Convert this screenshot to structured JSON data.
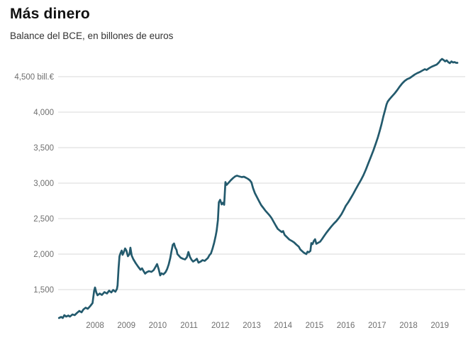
{
  "header": {
    "title": "Más dinero",
    "subtitle": "Balance del BCE, en billones de euros"
  },
  "colors": {
    "line": "#235a6d",
    "grid": "#d8d8d8",
    "tick_text": "#6f6f6f",
    "title": "#111111",
    "subtitle": "#333333",
    "background": "#ffffff"
  },
  "chart_data": {
    "type": "line",
    "title": "Más dinero",
    "subtitle": "Balance del BCE, en billones de euros",
    "ylabel": "",
    "xlabel": "",
    "unit": "bill.€",
    "legend": "none",
    "grid": "horizontal-only",
    "x_domain": [
      2006.85,
      2019.56
    ],
    "ylim": [
      1050,
      4800
    ],
    "y_ticks": [
      {
        "value": 4500,
        "label": "4,500 bill.€"
      },
      {
        "value": 4000,
        "label": "4,000"
      },
      {
        "value": 3500,
        "label": "3,500"
      },
      {
        "value": 3000,
        "label": "3,000"
      },
      {
        "value": 2500,
        "label": "2,500"
      },
      {
        "value": 2000,
        "label": "2,000"
      },
      {
        "value": 1500,
        "label": "1,500"
      }
    ],
    "x_ticks": [
      "2008",
      "2009",
      "2010",
      "2011",
      "2012",
      "2013",
      "2014",
      "2015",
      "2016",
      "2017",
      "2018",
      "2019"
    ],
    "series": [
      {
        "name": "Balance del BCE (billones de euros)",
        "color": "#235a6d",
        "points": [
          [
            2006.85,
            1100
          ],
          [
            2006.92,
            1115
          ],
          [
            2006.97,
            1100
          ],
          [
            2007.02,
            1140
          ],
          [
            2007.08,
            1120
          ],
          [
            2007.15,
            1135
          ],
          [
            2007.2,
            1120
          ],
          [
            2007.28,
            1150
          ],
          [
            2007.35,
            1140
          ],
          [
            2007.42,
            1170
          ],
          [
            2007.5,
            1200
          ],
          [
            2007.57,
            1180
          ],
          [
            2007.63,
            1220
          ],
          [
            2007.7,
            1245
          ],
          [
            2007.77,
            1230
          ],
          [
            2007.85,
            1270
          ],
          [
            2007.92,
            1310
          ],
          [
            2007.97,
            1480
          ],
          [
            2008.0,
            1530
          ],
          [
            2008.04,
            1460
          ],
          [
            2008.08,
            1420
          ],
          [
            2008.15,
            1445
          ],
          [
            2008.22,
            1425
          ],
          [
            2008.3,
            1465
          ],
          [
            2008.38,
            1445
          ],
          [
            2008.45,
            1485
          ],
          [
            2008.52,
            1460
          ],
          [
            2008.58,
            1495
          ],
          [
            2008.65,
            1470
          ],
          [
            2008.7,
            1510
          ],
          [
            2008.72,
            1560
          ],
          [
            2008.75,
            1800
          ],
          [
            2008.78,
            1970
          ],
          [
            2008.81,
            2010
          ],
          [
            2008.85,
            2050
          ],
          [
            2008.88,
            1990
          ],
          [
            2008.92,
            2030
          ],
          [
            2008.96,
            2080
          ],
          [
            2009.0,
            2050
          ],
          [
            2009.05,
            1970
          ],
          [
            2009.1,
            2000
          ],
          [
            2009.13,
            2090
          ],
          [
            2009.17,
            1980
          ],
          [
            2009.22,
            1930
          ],
          [
            2009.3,
            1870
          ],
          [
            2009.38,
            1820
          ],
          [
            2009.45,
            1780
          ],
          [
            2009.5,
            1800
          ],
          [
            2009.55,
            1760
          ],
          [
            2009.6,
            1725
          ],
          [
            2009.65,
            1745
          ],
          [
            2009.72,
            1760
          ],
          [
            2009.8,
            1750
          ],
          [
            2009.87,
            1775
          ],
          [
            2009.93,
            1820
          ],
          [
            2009.98,
            1860
          ],
          [
            2010.03,
            1790
          ],
          [
            2010.08,
            1700
          ],
          [
            2010.12,
            1730
          ],
          [
            2010.18,
            1715
          ],
          [
            2010.25,
            1745
          ],
          [
            2010.3,
            1790
          ],
          [
            2010.35,
            1855
          ],
          [
            2010.4,
            1945
          ],
          [
            2010.44,
            2040
          ],
          [
            2010.48,
            2130
          ],
          [
            2010.52,
            2150
          ],
          [
            2010.56,
            2090
          ],
          [
            2010.6,
            2060
          ],
          [
            2010.63,
            2000
          ],
          [
            2010.68,
            1975
          ],
          [
            2010.73,
            1950
          ],
          [
            2010.8,
            1935
          ],
          [
            2010.87,
            1925
          ],
          [
            2010.93,
            1955
          ],
          [
            2010.98,
            2030
          ],
          [
            2011.03,
            1960
          ],
          [
            2011.08,
            1920
          ],
          [
            2011.13,
            1895
          ],
          [
            2011.2,
            1915
          ],
          [
            2011.25,
            1935
          ],
          [
            2011.3,
            1880
          ],
          [
            2011.37,
            1895
          ],
          [
            2011.43,
            1915
          ],
          [
            2011.5,
            1905
          ],
          [
            2011.55,
            1925
          ],
          [
            2011.6,
            1945
          ],
          [
            2011.65,
            1985
          ],
          [
            2011.7,
            2010
          ],
          [
            2011.75,
            2080
          ],
          [
            2011.8,
            2160
          ],
          [
            2011.85,
            2260
          ],
          [
            2011.88,
            2330
          ],
          [
            2011.92,
            2480
          ],
          [
            2011.95,
            2730
          ],
          [
            2011.99,
            2765
          ],
          [
            2012.04,
            2700
          ],
          [
            2012.08,
            2725
          ],
          [
            2012.12,
            2695
          ],
          [
            2012.16,
            3015
          ],
          [
            2012.2,
            2975
          ],
          [
            2012.26,
            3005
          ],
          [
            2012.33,
            3040
          ],
          [
            2012.4,
            3070
          ],
          [
            2012.47,
            3095
          ],
          [
            2012.53,
            3105
          ],
          [
            2012.6,
            3095
          ],
          [
            2012.68,
            3085
          ],
          [
            2012.75,
            3090
          ],
          [
            2012.82,
            3075
          ],
          [
            2012.88,
            3060
          ],
          [
            2012.94,
            3040
          ],
          [
            2012.99,
            3010
          ],
          [
            2013.04,
            2930
          ],
          [
            2013.1,
            2860
          ],
          [
            2013.17,
            2800
          ],
          [
            2013.24,
            2740
          ],
          [
            2013.3,
            2690
          ],
          [
            2013.37,
            2650
          ],
          [
            2013.44,
            2610
          ],
          [
            2013.5,
            2580
          ],
          [
            2013.57,
            2545
          ],
          [
            2013.63,
            2510
          ],
          [
            2013.7,
            2455
          ],
          [
            2013.77,
            2400
          ],
          [
            2013.83,
            2355
          ],
          [
            2013.9,
            2330
          ],
          [
            2013.96,
            2310
          ],
          [
            2014.0,
            2325
          ],
          [
            2014.05,
            2270
          ],
          [
            2014.12,
            2240
          ],
          [
            2014.2,
            2205
          ],
          [
            2014.28,
            2185
          ],
          [
            2014.35,
            2165
          ],
          [
            2014.42,
            2135
          ],
          [
            2014.5,
            2105
          ],
          [
            2014.55,
            2065
          ],
          [
            2014.6,
            2045
          ],
          [
            2014.65,
            2025
          ],
          [
            2014.7,
            2010
          ],
          [
            2014.74,
            2000
          ],
          [
            2014.78,
            2035
          ],
          [
            2014.82,
            2025
          ],
          [
            2014.87,
            2045
          ],
          [
            2014.9,
            2155
          ],
          [
            2014.94,
            2140
          ],
          [
            2014.98,
            2185
          ],
          [
            2015.02,
            2210
          ],
          [
            2015.06,
            2145
          ],
          [
            2015.12,
            2160
          ],
          [
            2015.18,
            2175
          ],
          [
            2015.24,
            2210
          ],
          [
            2015.3,
            2250
          ],
          [
            2015.38,
            2300
          ],
          [
            2015.46,
            2345
          ],
          [
            2015.54,
            2390
          ],
          [
            2015.62,
            2430
          ],
          [
            2015.7,
            2465
          ],
          [
            2015.78,
            2510
          ],
          [
            2015.86,
            2560
          ],
          [
            2015.94,
            2625
          ],
          [
            2016.0,
            2680
          ],
          [
            2016.08,
            2730
          ],
          [
            2016.16,
            2790
          ],
          [
            2016.24,
            2850
          ],
          [
            2016.32,
            2915
          ],
          [
            2016.4,
            2980
          ],
          [
            2016.48,
            3040
          ],
          [
            2016.56,
            3110
          ],
          [
            2016.64,
            3190
          ],
          [
            2016.72,
            3280
          ],
          [
            2016.8,
            3370
          ],
          [
            2016.88,
            3460
          ],
          [
            2016.96,
            3560
          ],
          [
            2017.02,
            3640
          ],
          [
            2017.08,
            3730
          ],
          [
            2017.14,
            3830
          ],
          [
            2017.2,
            3940
          ],
          [
            2017.26,
            4040
          ],
          [
            2017.3,
            4110
          ],
          [
            2017.34,
            4150
          ],
          [
            2017.4,
            4185
          ],
          [
            2017.48,
            4225
          ],
          [
            2017.56,
            4265
          ],
          [
            2017.64,
            4310
          ],
          [
            2017.72,
            4360
          ],
          [
            2017.8,
            4405
          ],
          [
            2017.88,
            4440
          ],
          [
            2017.96,
            4465
          ],
          [
            2018.04,
            4480
          ],
          [
            2018.12,
            4505
          ],
          [
            2018.2,
            4530
          ],
          [
            2018.28,
            4550
          ],
          [
            2018.36,
            4565
          ],
          [
            2018.44,
            4585
          ],
          [
            2018.52,
            4605
          ],
          [
            2018.58,
            4595
          ],
          [
            2018.66,
            4620
          ],
          [
            2018.74,
            4640
          ],
          [
            2018.82,
            4655
          ],
          [
            2018.9,
            4670
          ],
          [
            2018.97,
            4700
          ],
          [
            2019.02,
            4730
          ],
          [
            2019.07,
            4750
          ],
          [
            2019.12,
            4735
          ],
          [
            2019.17,
            4715
          ],
          [
            2019.22,
            4730
          ],
          [
            2019.27,
            4705
          ],
          [
            2019.32,
            4690
          ],
          [
            2019.37,
            4715
          ],
          [
            2019.42,
            4700
          ],
          [
            2019.47,
            4705
          ],
          [
            2019.52,
            4695
          ],
          [
            2019.56,
            4695
          ]
        ]
      }
    ]
  }
}
